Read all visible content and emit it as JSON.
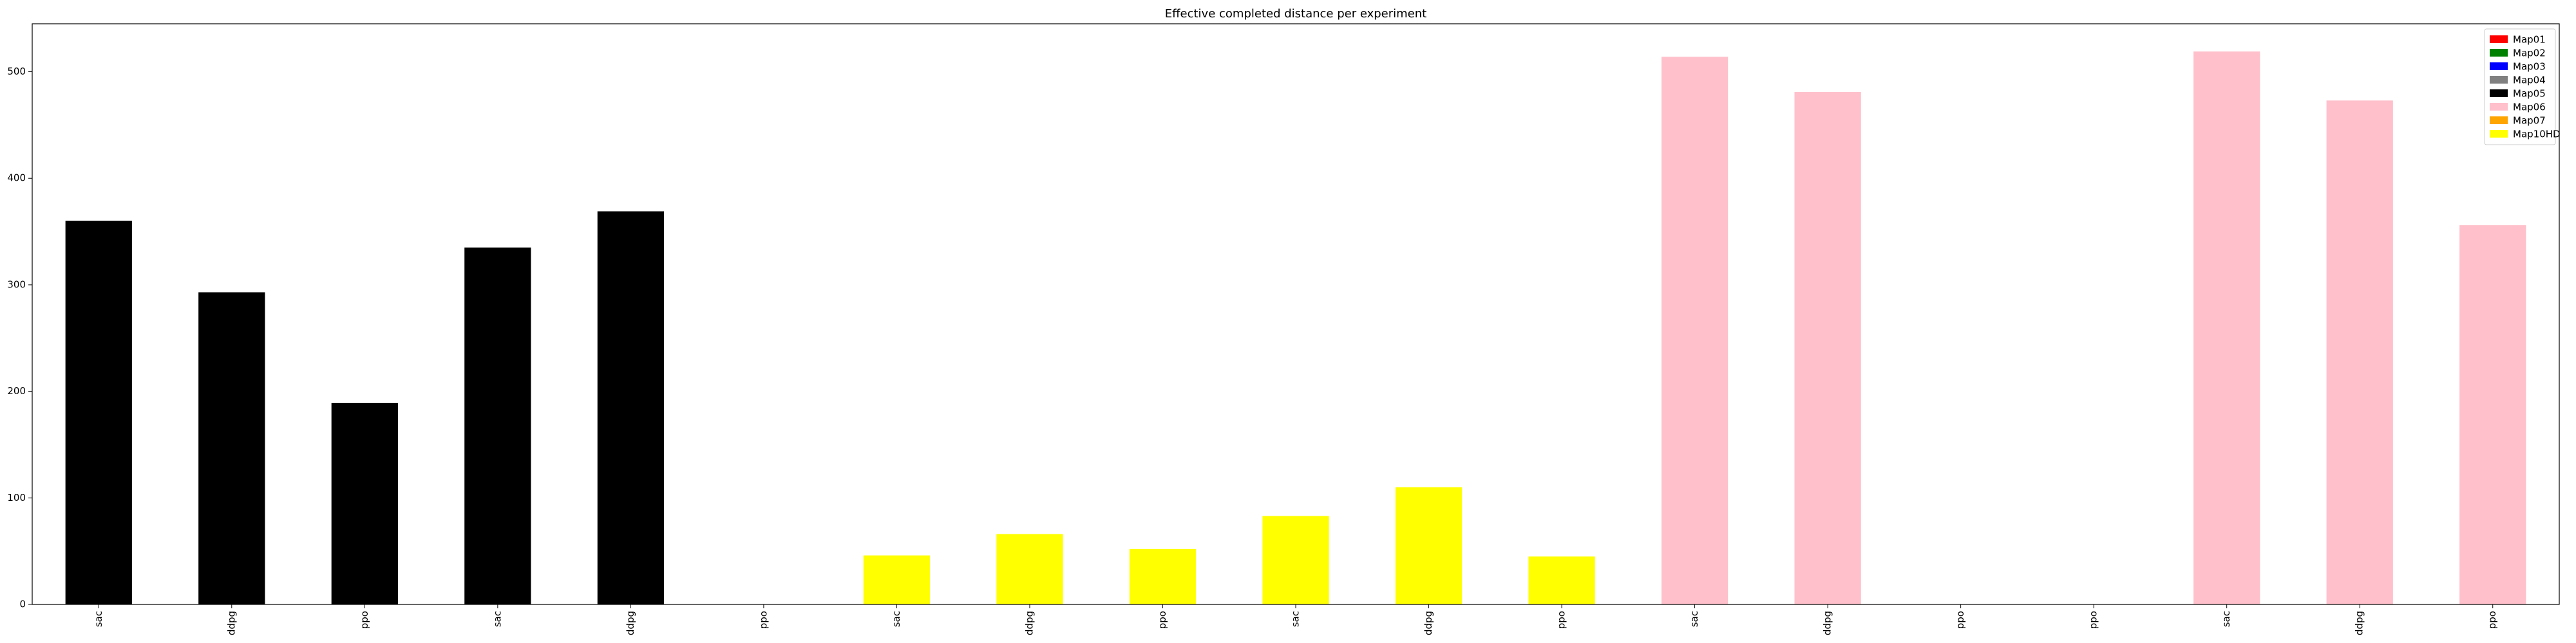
{
  "chart_data": {
    "type": "bar",
    "title": "Effective completed distance per experiment",
    "xlabel": "",
    "ylabel": "",
    "ylim": [
      0,
      545
    ],
    "yticks": [
      0,
      100,
      200,
      300,
      400,
      500
    ],
    "grid": false,
    "legend_position": "top-right",
    "legend": [
      {
        "name": "Map01",
        "color": "#ff0000"
      },
      {
        "name": "Map02",
        "color": "#008000"
      },
      {
        "name": "Map03",
        "color": "#0000ff"
      },
      {
        "name": "Map04",
        "color": "#808080"
      },
      {
        "name": "Map05",
        "color": "#000000"
      },
      {
        "name": "Map06",
        "color": "#ffc0cb"
      },
      {
        "name": "Map07",
        "color": "#ffa500"
      },
      {
        "name": "Map10HD",
        "color": "#ffff00"
      }
    ],
    "categories": [
      "sac",
      "ddpg",
      "ppo",
      "sac",
      "ddpg",
      "ppo",
      "sac",
      "ddpg",
      "ppo",
      "sac",
      "ddpg",
      "ppo",
      "sac",
      "ddpg",
      "ppo",
      "ppo",
      "sac",
      "ddpg",
      "ppo"
    ],
    "values": [
      360,
      293,
      189,
      335,
      369,
      0,
      46,
      66,
      52,
      83,
      110,
      45,
      514,
      481,
      0,
      0,
      519,
      473,
      356
    ],
    "bar_colors": [
      "#000000",
      "#000000",
      "#000000",
      "#000000",
      "#000000",
      "#000000",
      "#ffff00",
      "#ffff00",
      "#ffff00",
      "#ffff00",
      "#ffff00",
      "#ffff00",
      "#ffc0cb",
      "#ffc0cb",
      "#ffc0cb",
      "#ffc0cb",
      "#ffc0cb",
      "#ffc0cb",
      "#ffc0cb"
    ]
  }
}
